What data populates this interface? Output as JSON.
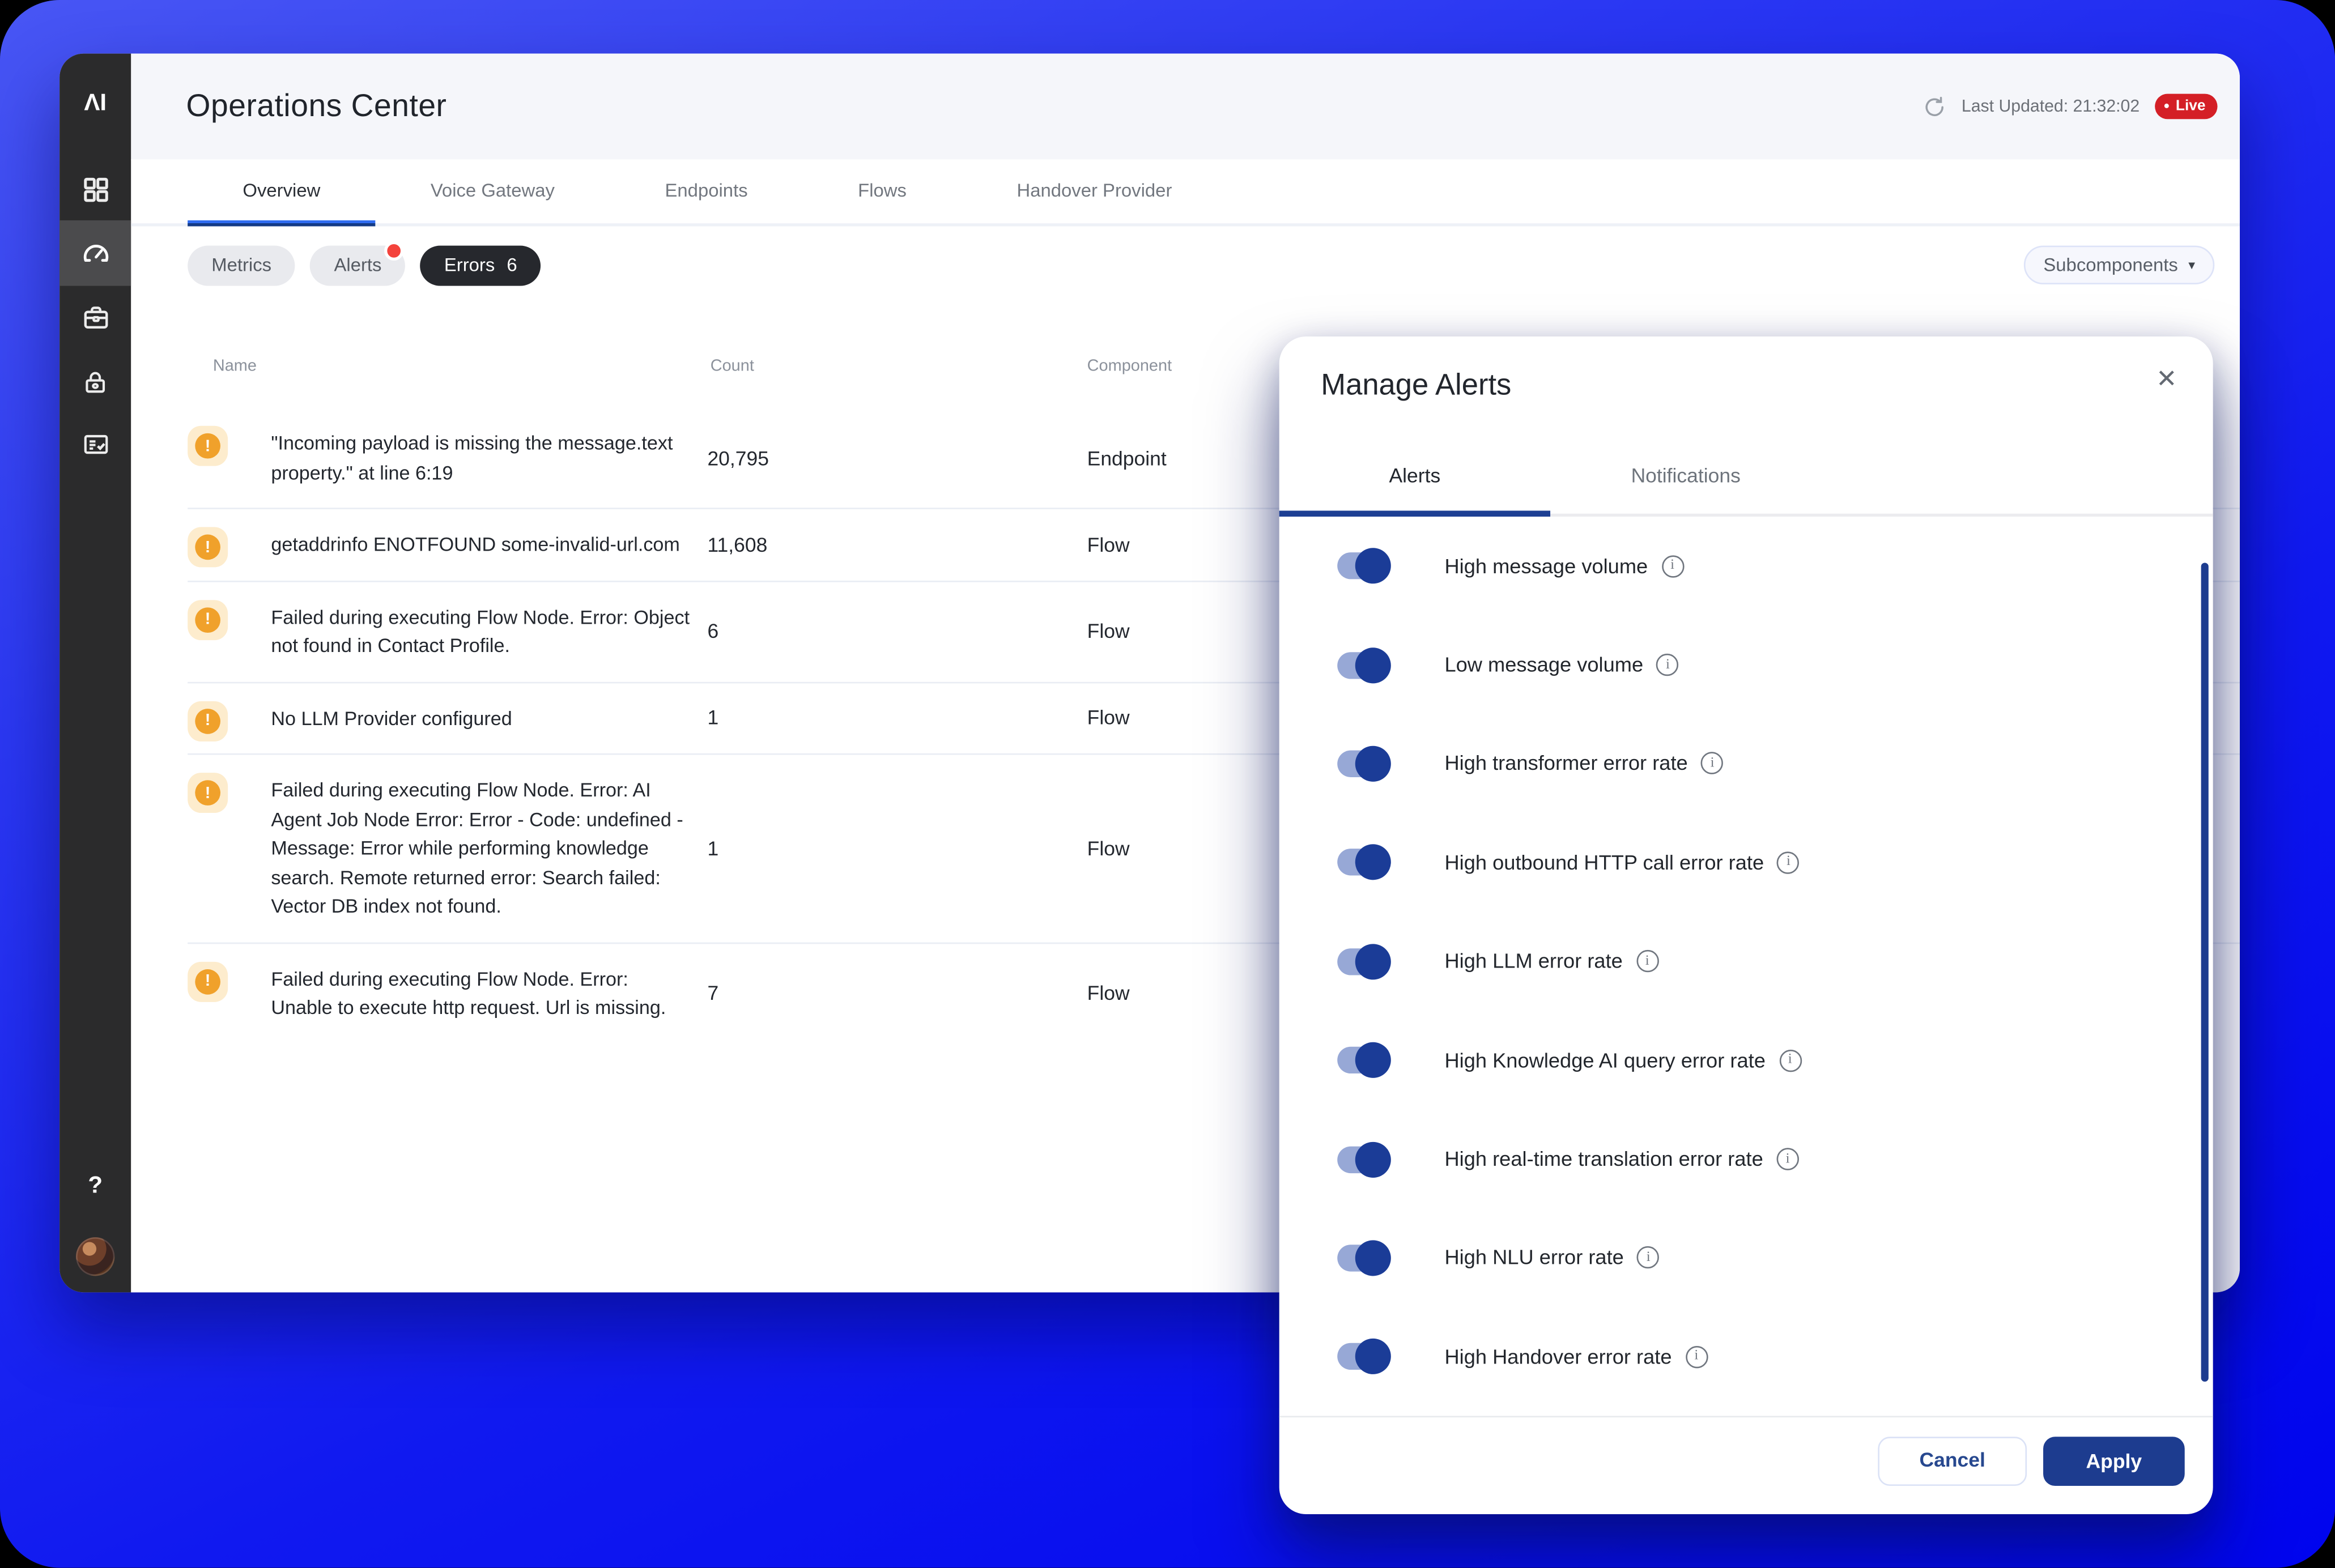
{
  "colors": {
    "accent_blue": "#2f6cf0",
    "navy": "#1d3c8f",
    "live_red": "#d41f26",
    "warn_orange": "#f0a12b",
    "toggle_track": "#97a8d6",
    "background_blue": "#1019f0",
    "sidebar_dark": "#2b2b2c"
  },
  "icons": {
    "warning": "!",
    "info": "i",
    "close": "✕",
    "caret": "▾",
    "live_dot": "●"
  },
  "sidebar": {
    "logo": "ΛI",
    "help": "?",
    "items": [
      {
        "name": "dashboard-grid-icon",
        "active": false
      },
      {
        "name": "gauge-icon",
        "active": true
      },
      {
        "name": "briefcase-icon",
        "active": false
      },
      {
        "name": "lock-icon",
        "active": false
      },
      {
        "name": "checklist-icon",
        "active": false
      }
    ]
  },
  "header": {
    "title": "Operations Center",
    "last_updated": "Last Updated: 21:32:02",
    "live": "Live"
  },
  "nav_tabs": [
    {
      "label": "Overview",
      "active": true
    },
    {
      "label": "Voice Gateway",
      "active": false
    },
    {
      "label": "Endpoints",
      "active": false
    },
    {
      "label": "Flows",
      "active": false
    },
    {
      "label": "Handover Provider",
      "active": false
    }
  ],
  "filters": {
    "chips": [
      {
        "label": "Metrics",
        "active": false,
        "dot": false,
        "count": ""
      },
      {
        "label": "Alerts",
        "active": false,
        "dot": true,
        "count": ""
      },
      {
        "label": "Errors",
        "active": true,
        "dot": false,
        "count": "6"
      }
    ],
    "subcomponents_label": "Subcomponents"
  },
  "table": {
    "columns": [
      "Name",
      "Count",
      "Component"
    ],
    "rows": [
      {
        "name": "\"Incoming payload is missing the message.text property.\" at line 6:19",
        "count": "20,795",
        "component": "Endpoint"
      },
      {
        "name": "getaddrinfo ENOTFOUND some-invalid-url.com",
        "count": "11,608",
        "component": "Flow"
      },
      {
        "name": "Failed during executing Flow Node. Error: Object not found in Contact Profile.",
        "count": "6",
        "component": "Flow"
      },
      {
        "name": "No LLM Provider configured",
        "count": "1",
        "component": "Flow"
      },
      {
        "name": "Failed during executing Flow Node. Error: AI Agent Job Node Error: Error - Code: undefined - Message: Error while performing knowledge search. Remote returned error: Search failed: Vector DB index not found.",
        "count": "1",
        "component": "Flow"
      },
      {
        "name": "Failed during executing Flow Node. Error: Unable to execute http request. Url is missing.",
        "count": "7",
        "component": "Flow"
      }
    ]
  },
  "modal": {
    "title": "Manage Alerts",
    "tabs": [
      {
        "label": "Alerts",
        "active": true
      },
      {
        "label": "Notifications",
        "active": false
      }
    ],
    "alerts": [
      {
        "label": "High message volume",
        "on": true
      },
      {
        "label": "Low message volume",
        "on": true
      },
      {
        "label": "High transformer error rate",
        "on": true
      },
      {
        "label": "High outbound HTTP call error rate",
        "on": true
      },
      {
        "label": "High LLM error rate",
        "on": true
      },
      {
        "label": "High Knowledge AI query error rate",
        "on": true
      },
      {
        "label": "High real-time translation error rate",
        "on": true
      },
      {
        "label": "High NLU error rate",
        "on": true
      },
      {
        "label": "High Handover error rate",
        "on": true
      }
    ],
    "footer": {
      "cancel": "Cancel",
      "apply": "Apply"
    }
  }
}
